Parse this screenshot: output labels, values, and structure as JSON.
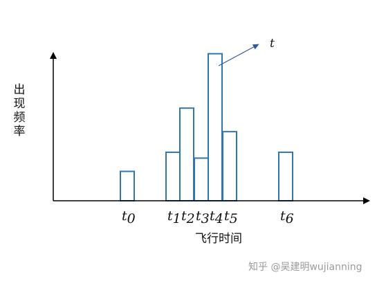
{
  "chart_data": {
    "type": "bar",
    "categories": [
      "t0",
      "t1",
      "t2",
      "t3",
      "t4",
      "t5",
      "t6"
    ],
    "tick_labels": [
      {
        "base": "t",
        "sub": "0"
      },
      {
        "base": "t",
        "sub": "1"
      },
      {
        "base": "t",
        "sub": "2"
      },
      {
        "base": "t",
        "sub": "3"
      },
      {
        "base": "t",
        "sub": "4"
      },
      {
        "base": "t",
        "sub": "5"
      },
      {
        "base": "t",
        "sub": "6"
      }
    ],
    "values": [
      2,
      3.3,
      6.3,
      2.9,
      10,
      4.7,
      3.3
    ],
    "ylim": [
      0,
      10.5
    ],
    "xlabel": "飞行时间",
    "ylabel": "出\n现\n频\n率",
    "annotation": "t",
    "bar_color": "#2e75b6",
    "axis_color": "#000000",
    "grid": false
  },
  "watermark": "知乎 @吴建明wujianning"
}
